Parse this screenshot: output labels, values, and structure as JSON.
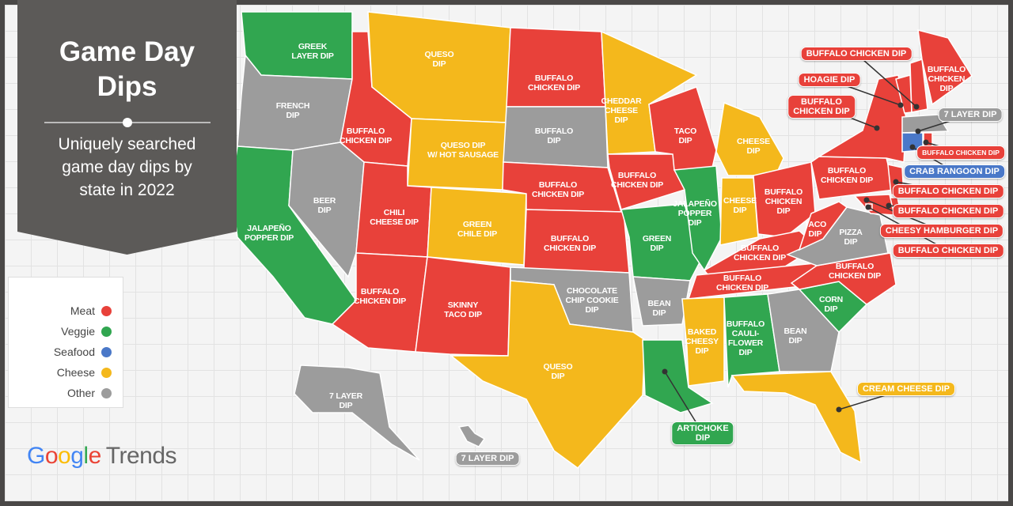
{
  "title": "Game Day Dips",
  "subtitle": "Uniquely searched game day dips by state in 2022",
  "categories": {
    "meat": {
      "label": "Meat",
      "color": "#e8413a"
    },
    "veggie": {
      "label": "Veggie",
      "color": "#31a650"
    },
    "seafood": {
      "label": "Seafood",
      "color": "#4a78c8"
    },
    "cheese": {
      "label": "Cheese",
      "color": "#f4b81c"
    },
    "other": {
      "label": "Other",
      "color": "#9c9c9c"
    }
  },
  "legend_order": [
    "meat",
    "veggie",
    "seafood",
    "cheese",
    "other"
  ],
  "brand": {
    "google": "Google",
    "trends": "Trends"
  },
  "regions": [
    {
      "label": "GREEK\nLAYER DIP",
      "category": "veggie"
    },
    {
      "label": "FRENCH\nDIP",
      "category": "other"
    },
    {
      "label": "JALAPEÑO\nPOPPER DIP",
      "category": "veggie"
    },
    {
      "label": "BEER\nDIP",
      "category": "other"
    },
    {
      "label": "BUFFALO\nCHICKEN DIP",
      "category": "meat"
    },
    {
      "label": "QUESO\nDIP",
      "category": "cheese"
    },
    {
      "label": "QUESO DIP\nW/ HOT SAUSAGE",
      "category": "cheese"
    },
    {
      "label": "CHILI\nCHEESE DIP",
      "category": "meat"
    },
    {
      "label": "BUFFALO\nCHICKEN DIP",
      "category": "meat"
    },
    {
      "label": "GREEN\nCHILE DIP",
      "category": "cheese"
    },
    {
      "label": "SKINNY\nTACO DIP",
      "category": "meat"
    },
    {
      "label": "BUFFALO\nCHICKEN DIP",
      "category": "meat"
    },
    {
      "label": "BUFFALO\nDIP",
      "category": "other"
    },
    {
      "label": "BUFFALO\nCHICKEN DIP",
      "category": "meat"
    },
    {
      "label": "BUFFALO\nCHICKEN DIP",
      "category": "meat"
    },
    {
      "label": "CHOCOLATE\nCHIP COOKIE\nDIP",
      "category": "other"
    },
    {
      "label": "QUESO\nDIP",
      "category": "cheese"
    },
    {
      "label": "CHEDDAR\nCHEESE\nDIP",
      "category": "cheese"
    },
    {
      "label": "BUFFALO\nCHICKEN DIP",
      "category": "meat"
    },
    {
      "label": "GREEN\nDIP",
      "category": "veggie"
    },
    {
      "label": "BEAN\nDIP",
      "category": "other"
    },
    {
      "label": "ARTICHOKE\nDIP",
      "category": "veggie"
    },
    {
      "label": "TACO\nDIP",
      "category": "meat"
    },
    {
      "label": "JALAPEÑO\nPOPPER\nDIP",
      "category": "veggie"
    },
    {
      "label": "CHEESE\nDIP",
      "category": "cheese"
    },
    {
      "label": "CHEESE\nDIP",
      "category": "cheese"
    },
    {
      "label": "BUFFALO\nCHICKEN\nDIP",
      "category": "meat"
    },
    {
      "label": "BUFFALO\nCHICKEN DIP",
      "category": "meat"
    },
    {
      "label": "BUFFALO\nCHICKEN DIP",
      "category": "meat"
    },
    {
      "label": "BAKED\nCHEESY\nDIP",
      "category": "cheese"
    },
    {
      "label": "BUFFALO\nCAULI-\nFLOWER\nDIP",
      "category": "veggie"
    },
    {
      "label": "BEAN\nDIP",
      "category": "other"
    },
    {
      "label": "CREAM CHEESE DIP",
      "category": "cheese"
    },
    {
      "label": "CORN\nDIP",
      "category": "veggie"
    },
    {
      "label": "BUFFALO\nCHICKEN DIP",
      "category": "meat"
    },
    {
      "label": "PIZZA\nDIP",
      "category": "other"
    },
    {
      "label": "TACO\nDIP",
      "category": "meat"
    },
    {
      "label": "BUFFALO\nCHICKEN DIP",
      "category": "meat"
    },
    {
      "label": "BUFFALO\nCHICKEN DIP",
      "category": "meat"
    },
    {
      "label": "HOAGIE DIP",
      "category": "meat"
    },
    {
      "label": "BUFFALO CHICKEN DIP",
      "category": "meat"
    },
    {
      "label": "BUFFALO\nCHICKEN\nDIP",
      "category": "meat"
    },
    {
      "label": "7 LAYER DIP",
      "category": "other"
    },
    {
      "label": "CRAB RANGOON DIP",
      "category": "seafood"
    },
    {
      "label": "BUFFALO CHICKEN DIP",
      "category": "meat"
    },
    {
      "label": "BUFFALO CHICKEN DIP",
      "category": "meat"
    },
    {
      "label": "BUFFALO CHICKEN DIP",
      "category": "meat"
    },
    {
      "label": "CHEESY HAMBURGER DIP",
      "category": "meat"
    },
    {
      "label": "BUFFALO CHICKEN DIP",
      "category": "meat"
    },
    {
      "label": "7 LAYER\nDIP",
      "category": "other"
    },
    {
      "label": "7 LAYER DIP",
      "category": "other"
    }
  ]
}
